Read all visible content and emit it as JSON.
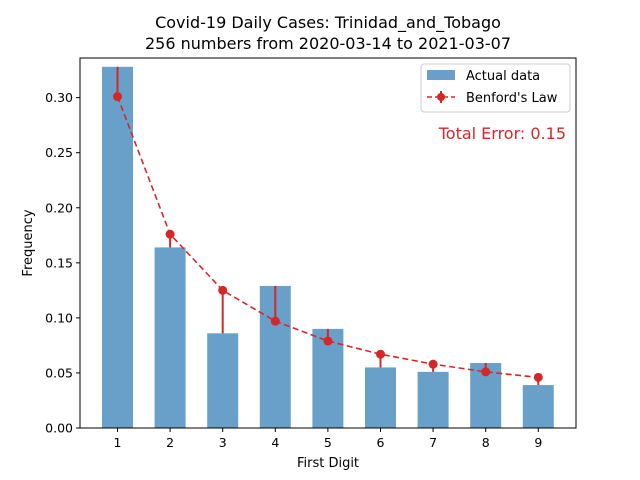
{
  "chart_data": {
    "type": "bar",
    "title_line1": "Covid-19 Daily Cases: Trinidad_and_Tobago",
    "title_line2": "256 numbers from 2020-03-14 to 2021-03-07",
    "xlabel": "First Digit",
    "ylabel": "Frequency",
    "categories": [
      "1",
      "2",
      "3",
      "4",
      "5",
      "6",
      "7",
      "8",
      "9"
    ],
    "series": [
      {
        "name": "Actual data",
        "type": "bar",
        "color": "#4f8fc0",
        "values": [
          0.328,
          0.164,
          0.086,
          0.129,
          0.09,
          0.055,
          0.051,
          0.059,
          0.039
        ]
      },
      {
        "name": "Benford's Law",
        "type": "line",
        "color": "#d62728",
        "values": [
          0.301,
          0.176,
          0.125,
          0.097,
          0.079,
          0.067,
          0.058,
          0.051,
          0.046
        ]
      }
    ],
    "ylim": [
      0,
      0.336
    ],
    "yticks": [
      "0.00",
      "0.05",
      "0.10",
      "0.15",
      "0.20",
      "0.25",
      "0.30"
    ],
    "annotation": "Total Error: 0.15",
    "legend_position": "top-right"
  }
}
